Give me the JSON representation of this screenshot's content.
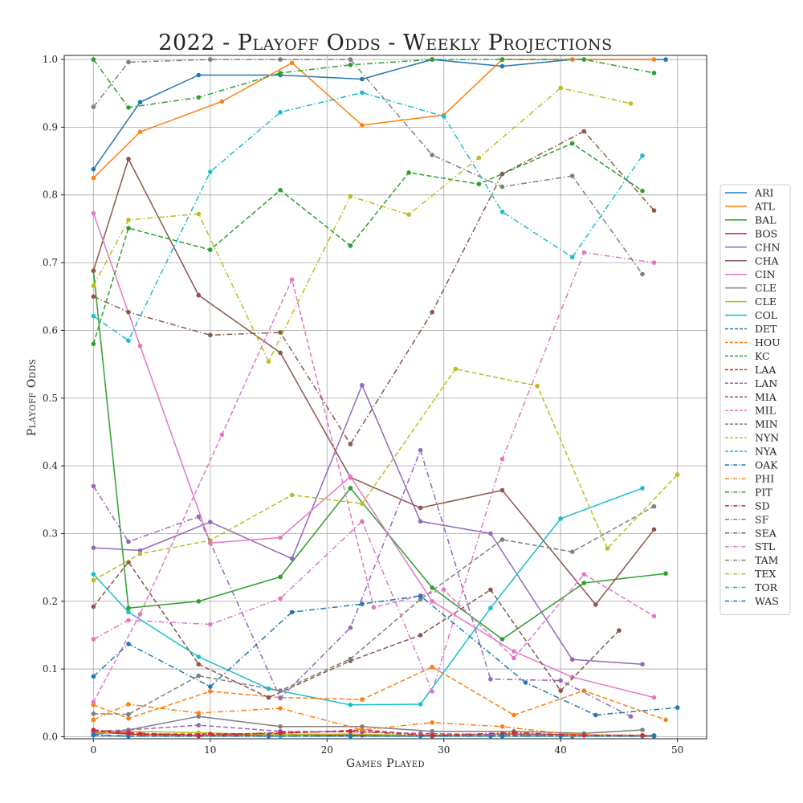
{
  "chart_data": {
    "type": "line",
    "title": "2022 - Playoff Odds - Weekly Projections",
    "xlabel": "Games Played",
    "ylabel": "Playoff Odds",
    "xlim": [
      -2.5,
      52.5
    ],
    "ylim": [
      -0.003,
      1.006
    ],
    "xticks": [
      0,
      10,
      20,
      30,
      40,
      50
    ],
    "yticks": [
      0.0,
      0.1,
      0.2,
      0.3,
      0.4,
      0.5,
      0.6,
      0.7,
      0.8,
      0.9,
      1.0
    ],
    "xtick_labels": [
      "0",
      "10",
      "20",
      "30",
      "40",
      "50"
    ],
    "ytick_labels": [
      "0.0",
      "0.1",
      "0.2",
      "0.3",
      "0.4",
      "0.5",
      "0.6",
      "0.7",
      "0.8",
      "0.9",
      "1.0"
    ],
    "grid": true,
    "legend_position": "right",
    "series": [
      {
        "name": "ARI",
        "color": "#1f77b4",
        "dash": "solid",
        "x": [
          0,
          4,
          9,
          16,
          23,
          29,
          35,
          41,
          49
        ],
        "y": [
          0.838,
          0.937,
          0.977,
          0.977,
          0.971,
          1.0,
          0.99,
          1.0,
          1.0
        ]
      },
      {
        "name": "ATL",
        "color": "#ff7f0e",
        "dash": "solid",
        "x": [
          0,
          4,
          11,
          17,
          23,
          30,
          35,
          41,
          48
        ],
        "y": [
          0.825,
          0.893,
          0.938,
          0.995,
          0.903,
          0.918,
          1.0,
          1.0,
          1.0
        ]
      },
      {
        "name": "BAL",
        "color": "#2ca02c",
        "dash": "solid",
        "x": [
          0,
          3,
          9,
          16,
          22,
          29,
          35,
          42,
          49
        ],
        "y": [
          0.688,
          0.19,
          0.2,
          0.236,
          0.367,
          0.22,
          0.144,
          0.227,
          0.241
        ]
      },
      {
        "name": "BOS",
        "color": "#d62728",
        "dash": "solid",
        "x": [
          0,
          4,
          9,
          16,
          23,
          29,
          35,
          41,
          48
        ],
        "y": [
          0.007,
          0.003,
          0.002,
          0.003,
          0.002,
          0.001,
          0.004,
          0.003,
          0.001
        ]
      },
      {
        "name": "CHN",
        "color": "#9467bd",
        "dash": "solid",
        "x": [
          0,
          4,
          10,
          17,
          23,
          28,
          34,
          41,
          47
        ],
        "y": [
          0.279,
          0.275,
          0.317,
          0.263,
          0.519,
          0.318,
          0.3,
          0.114,
          0.107
        ]
      },
      {
        "name": "CHA",
        "color": "#8c564b",
        "dash": "solid",
        "x": [
          0,
          3,
          9,
          16,
          22,
          28,
          35,
          43,
          48
        ],
        "y": [
          0.688,
          0.853,
          0.652,
          0.567,
          0.383,
          0.338,
          0.364,
          0.195,
          0.306
        ]
      },
      {
        "name": "CIN",
        "color": "#e377c2",
        "dash": "solid",
        "x": [
          0,
          4,
          10,
          16,
          22,
          29,
          36,
          41,
          48
        ],
        "y": [
          0.773,
          0.577,
          0.286,
          0.294,
          0.384,
          0.2,
          0.126,
          0.088,
          0.058
        ]
      },
      {
        "name": "CLE",
        "color": "#7f7f7f",
        "dash": "solid",
        "x": [
          0,
          3,
          9,
          16,
          23,
          29,
          36,
          42,
          47
        ],
        "y": [
          0.003,
          0.01,
          0.03,
          0.015,
          0.015,
          0.008,
          0.008,
          0.005,
          0.01
        ]
      },
      {
        "name": "CLE",
        "color": "#bcbd22",
        "dash": "solid",
        "x": [
          0,
          3,
          9,
          15,
          22,
          28,
          35,
          41,
          48
        ],
        "y": [
          0.005,
          0.008,
          0.006,
          0.003,
          0.004,
          0.002,
          0.003,
          0.002,
          0.002
        ]
      },
      {
        "name": "COL",
        "color": "#17becf",
        "dash": "solid",
        "x": [
          0,
          3,
          9,
          15,
          22,
          28,
          34,
          40,
          47
        ],
        "y": [
          0.24,
          0.184,
          0.118,
          0.071,
          0.047,
          0.048,
          0.19,
          0.322,
          0.367
        ]
      },
      {
        "name": "DET",
        "color": "#1f77b4",
        "dash": "dashed",
        "x": [
          0,
          3,
          9,
          15,
          22,
          28,
          34,
          40,
          47
        ],
        "y": [
          0.002,
          0.001,
          0.002,
          0.001,
          0.001,
          0.001,
          0.001,
          0.001,
          0.001
        ]
      },
      {
        "name": "HOU",
        "color": "#ff7f0e",
        "dash": "dashed",
        "x": [
          0,
          3,
          10,
          16,
          23,
          29,
          36,
          42,
          49
        ],
        "y": [
          0.047,
          0.027,
          0.067,
          0.058,
          0.055,
          0.103,
          0.032,
          0.068,
          0.025
        ]
      },
      {
        "name": "KC",
        "color": "#2ca02c",
        "dash": "dashed",
        "x": [
          0,
          3,
          10,
          16,
          22,
          27,
          33,
          41,
          47
        ],
        "y": [
          0.58,
          0.751,
          0.719,
          0.807,
          0.725,
          0.833,
          0.816,
          0.876,
          0.806
        ]
      },
      {
        "name": "LAA",
        "color": "#d62728",
        "dash": "dashed",
        "x": [
          0,
          4,
          10,
          16,
          23,
          29,
          35,
          41,
          48
        ],
        "y": [
          0.008,
          0.004,
          0.004,
          0.005,
          0.01,
          0.002,
          0.003,
          0.002,
          0.001
        ]
      },
      {
        "name": "LAN",
        "color": "#9467bd",
        "dash": "dashed",
        "x": [
          0,
          3,
          9,
          16,
          23,
          28,
          34,
          40,
          48
        ],
        "y": [
          0.008,
          0.01,
          0.017,
          0.008,
          0.007,
          0.005,
          0.003,
          0.003,
          0.002
        ]
      },
      {
        "name": "MIA",
        "color": "#8c564b",
        "dash": "dashed",
        "x": [
          0,
          3,
          9,
          15,
          22,
          28,
          34,
          40,
          45
        ],
        "y": [
          0.192,
          0.258,
          0.107,
          0.058,
          0.112,
          0.15,
          0.217,
          0.068,
          0.157
        ]
      },
      {
        "name": "MIL",
        "color": "#e377c2",
        "dash": "dashed",
        "x": [
          0,
          4,
          11,
          17,
          24,
          30,
          36,
          42,
          48
        ],
        "y": [
          0.051,
          0.181,
          0.446,
          0.675,
          0.191,
          0.217,
          0.116,
          0.24,
          0.178
        ]
      },
      {
        "name": "MIN",
        "color": "#7f7f7f",
        "dash": "dashed",
        "x": [
          0,
          3,
          9,
          16,
          22,
          28,
          35,
          41,
          48
        ],
        "y": [
          0.034,
          0.033,
          0.09,
          0.068,
          0.115,
          0.203,
          0.291,
          0.273,
          0.34
        ]
      },
      {
        "name": "NYN",
        "color": "#bcbd22",
        "dash": "dashed",
        "x": [
          0,
          4,
          10,
          17,
          23,
          31,
          38,
          44,
          50
        ],
        "y": [
          0.231,
          0.27,
          0.29,
          0.357,
          0.344,
          0.543,
          0.518,
          0.278,
          0.387
        ]
      },
      {
        "name": "NYA",
        "color": "#17becf",
        "dash": "dashed",
        "x": [
          0,
          3,
          9,
          16,
          22,
          29,
          35,
          41,
          47
        ],
        "y": [
          0.002,
          0.001,
          0.002,
          0.001,
          0.001,
          0.001,
          0.001,
          0.001,
          0.001
        ]
      },
      {
        "name": "OAK",
        "color": "#1f77b4",
        "dash": "dashdot",
        "x": [
          0,
          3,
          9,
          15,
          22,
          29,
          35,
          41,
          48
        ],
        "y": [
          0.003,
          0.001,
          0.001,
          0.001,
          0.001,
          0.001,
          0.001,
          0.001,
          0.001
        ]
      },
      {
        "name": "PHI",
        "color": "#ff7f0e",
        "dash": "dashdot",
        "x": [
          0,
          3,
          9,
          16,
          23,
          29,
          35,
          41,
          47
        ],
        "y": [
          0.025,
          0.048,
          0.035,
          0.042,
          0.01,
          0.021,
          0.015,
          0.003,
          0.002
        ]
      },
      {
        "name": "PIT",
        "color": "#2ca02c",
        "dash": "dashdot",
        "x": [
          0,
          3,
          9,
          16,
          22,
          29,
          35,
          42,
          48
        ],
        "y": [
          1.0,
          0.929,
          0.944,
          0.98,
          0.992,
          1.0,
          1.0,
          1.0,
          0.98
        ]
      },
      {
        "name": "SD",
        "color": "#d62728",
        "dash": "dashdot",
        "x": [
          0,
          3,
          9,
          16,
          22,
          29,
          36,
          42,
          47
        ],
        "y": [
          0.01,
          0.006,
          0.002,
          0.006,
          0.008,
          0.002,
          0.006,
          0.002,
          0.002
        ]
      },
      {
        "name": "SF",
        "color": "#9467bd",
        "dash": "dashdot",
        "x": [
          0,
          3,
          9,
          16,
          22,
          28,
          34,
          40,
          46
        ],
        "y": [
          0.37,
          0.288,
          0.325,
          0.057,
          0.161,
          0.423,
          0.085,
          0.083,
          0.03
        ]
      },
      {
        "name": "SEA",
        "color": "#8c564b",
        "dash": "dashdot",
        "x": [
          0,
          3,
          10,
          16,
          22,
          29,
          35,
          42,
          48
        ],
        "y": [
          0.65,
          0.627,
          0.593,
          0.597,
          0.432,
          0.627,
          0.831,
          0.894,
          0.777
        ]
      },
      {
        "name": "STL",
        "color": "#e377c2",
        "dash": "dashdot",
        "x": [
          0,
          3,
          10,
          16,
          23,
          29,
          35,
          42,
          48
        ],
        "y": [
          0.144,
          0.172,
          0.166,
          0.204,
          0.318,
          0.067,
          0.41,
          0.715,
          0.7
        ]
      },
      {
        "name": "TAM",
        "color": "#7f7f7f",
        "dash": "dashdot",
        "x": [
          0,
          3,
          10,
          16,
          22,
          29,
          35,
          41,
          47
        ],
        "y": [
          0.93,
          0.996,
          1.0,
          1.0,
          1.0,
          0.859,
          0.812,
          0.828,
          0.683
        ]
      },
      {
        "name": "TEX",
        "color": "#bcbd22",
        "dash": "dashdot",
        "x": [
          0,
          3,
          9,
          15,
          22,
          27,
          33,
          40,
          46
        ],
        "y": [
          0.666,
          0.763,
          0.772,
          0.554,
          0.798,
          0.771,
          0.855,
          0.958,
          0.935
        ]
      },
      {
        "name": "TOR",
        "color": "#17becf",
        "dash": "dashdot",
        "x": [
          0,
          3,
          10,
          16,
          23,
          30,
          35,
          41,
          47
        ],
        "y": [
          0.621,
          0.585,
          0.834,
          0.922,
          0.951,
          0.916,
          0.775,
          0.708,
          0.858
        ]
      },
      {
        "name": "WAS",
        "color": "#1f77b4",
        "dash": "dashdot",
        "x": [
          0,
          3,
          10,
          17,
          23,
          28,
          37,
          43,
          50
        ],
        "y": [
          0.089,
          0.137,
          0.074,
          0.184,
          0.196,
          0.208,
          0.08,
          0.032,
          0.043
        ]
      }
    ]
  }
}
